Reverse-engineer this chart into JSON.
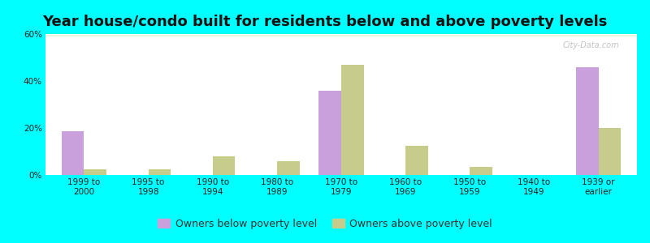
{
  "title": "Year house/condo built for residents below and above poverty levels",
  "categories": [
    "1999 to\n2000",
    "1995 to\n1998",
    "1990 to\n1994",
    "1980 to\n1989",
    "1970 to\n1979",
    "1960 to\n1969",
    "1950 to\n1959",
    "1940 to\n1949",
    "1939 or\nearlier"
  ],
  "below_poverty": [
    18.5,
    0,
    0,
    0,
    36.0,
    0,
    0,
    0,
    46.0
  ],
  "above_poverty": [
    2.5,
    2.5,
    8.0,
    6.0,
    47.0,
    12.5,
    3.5,
    0,
    20.0
  ],
  "below_color": "#c9a0dc",
  "above_color": "#c8cc8a",
  "ylim": [
    0,
    60
  ],
  "yticks": [
    0,
    20,
    40,
    60
  ],
  "ytick_labels": [
    "0%",
    "20%",
    "40%",
    "60%"
  ],
  "bar_width": 0.35,
  "background_color": "#00ffff",
  "legend_below_label": "Owners below poverty level",
  "legend_above_label": "Owners above poverty level",
  "title_fontsize": 13,
  "tick_fontsize": 7.5,
  "legend_fontsize": 9
}
